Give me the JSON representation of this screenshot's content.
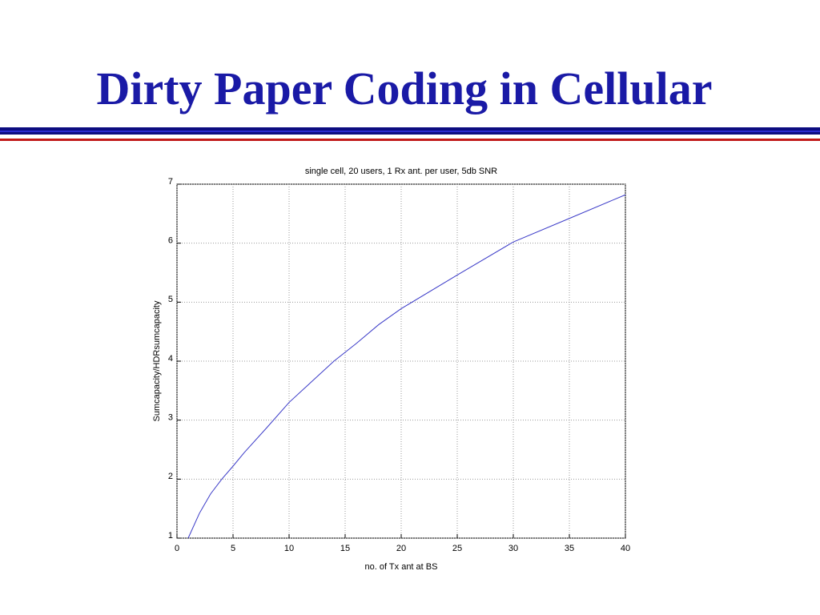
{
  "slide_title": "Dirty Paper Coding in Cellular",
  "chart_data": {
    "type": "line",
    "title": "single cell, 20 users, 1 Rx ant. per user, 5db SNR",
    "x_label": "no. of Tx ant at BS",
    "y_label": "Sumcapacity/HDRsumcapacity",
    "x": [
      1,
      2,
      3,
      4,
      5,
      6,
      8,
      10,
      12,
      14,
      16,
      18,
      20,
      25,
      30,
      35,
      40
    ],
    "series": [
      {
        "name": "Sumcapacity/HDRsumcapacity",
        "color": "#3b3bc8",
        "values": [
          1.0,
          1.42,
          1.75,
          2.0,
          2.22,
          2.45,
          2.87,
          3.3,
          3.65,
          4.0,
          4.3,
          4.62,
          4.89,
          5.46,
          6.02,
          6.42,
          6.82
        ]
      }
    ],
    "xlim": [
      0,
      40
    ],
    "ylim": [
      1,
      7
    ],
    "xticks": [
      0,
      5,
      10,
      15,
      20,
      25,
      30,
      35,
      40
    ],
    "yticks": [
      1,
      2,
      3,
      4,
      5,
      6,
      7
    ],
    "grid": true
  }
}
